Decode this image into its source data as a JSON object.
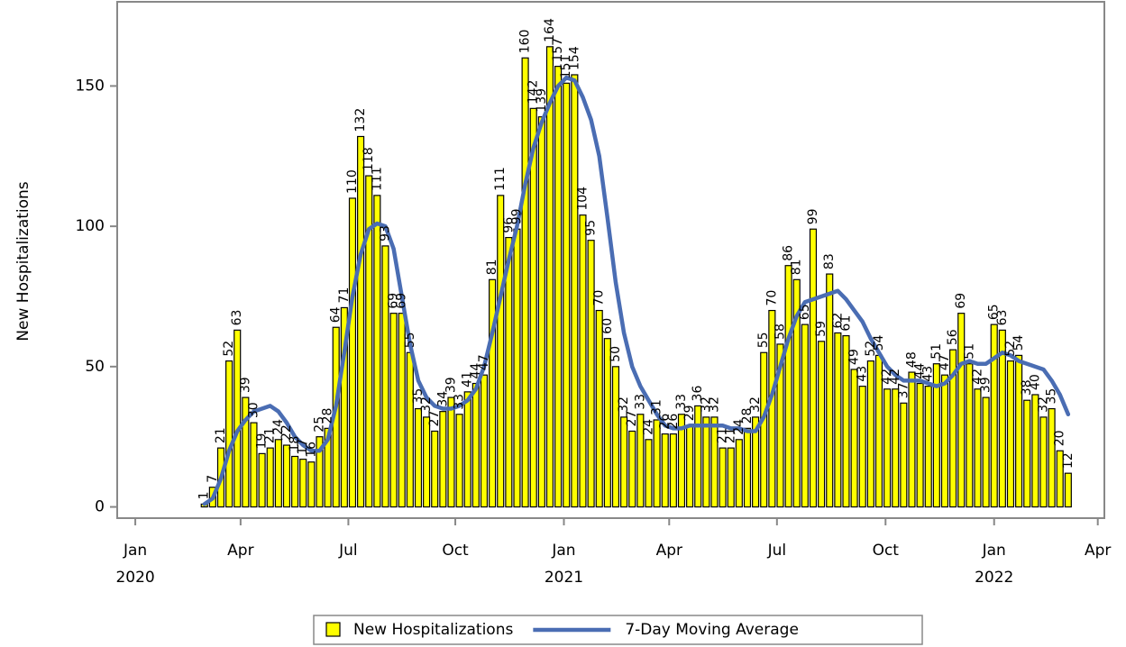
{
  "chart_data": {
    "type": "bar",
    "y_label": "New Hospitalizations",
    "categories": [
      null,
      null,
      null,
      null,
      null,
      null,
      null,
      null,
      null,
      null,
      null,
      null,
      null,
      null,
      null,
      null,
      null,
      null,
      null,
      null,
      null,
      null,
      null,
      null,
      null,
      null,
      null,
      null,
      null,
      null,
      null,
      null,
      null,
      null,
      null,
      null,
      null,
      null,
      null,
      null,
      null,
      null,
      null,
      null,
      null,
      null,
      null,
      null,
      null,
      null,
      null,
      null,
      null,
      null,
      null,
      null,
      null,
      null,
      null,
      null,
      null,
      null,
      null,
      null,
      null,
      null,
      null,
      null,
      null,
      null,
      null,
      null,
      null,
      null,
      null,
      null,
      null,
      null,
      null,
      null,
      null,
      null,
      null,
      null,
      null,
      null,
      null,
      null,
      null,
      null,
      null,
      null,
      null,
      null,
      null,
      null,
      null,
      null,
      null,
      null,
      null,
      null,
      null,
      null,
      null,
      null
    ],
    "series": [
      {
        "name": "New Hospitalizations",
        "type": "bar",
        "color": "#ffff00",
        "values": [
          1,
          7,
          21,
          52,
          63,
          39,
          30,
          19,
          21,
          24,
          22,
          18,
          17,
          16,
          25,
          28,
          64,
          71,
          110,
          132,
          118,
          111,
          93,
          69,
          69,
          55,
          35,
          32,
          27,
          34,
          39,
          33,
          41,
          44,
          47,
          81,
          111,
          96,
          99,
          160,
          142,
          139,
          164,
          157,
          151,
          154,
          104,
          95,
          70,
          60,
          50,
          32,
          27,
          33,
          24,
          31,
          26,
          26,
          33,
          29,
          36,
          32,
          32,
          21,
          21,
          24,
          28,
          32,
          55,
          70,
          58,
          86,
          81,
          65,
          99,
          59,
          83,
          62,
          61,
          49,
          43,
          52,
          54,
          42,
          42,
          37,
          48,
          44,
          43,
          51,
          47,
          56,
          69,
          51,
          42,
          39,
          65,
          63,
          52,
          54,
          38,
          40,
          32,
          35,
          20,
          12
        ]
      },
      {
        "name": "7-Day Moving Average",
        "type": "line",
        "color": "#4a6db3",
        "values": [
          1,
          3,
          10,
          20,
          27,
          31,
          34,
          35,
          36,
          34,
          30,
          25,
          22,
          20,
          20,
          24,
          36,
          55,
          75,
          90,
          99,
          101,
          100,
          92,
          75,
          58,
          45,
          39,
          36,
          35,
          35,
          36,
          38,
          42,
          50,
          62,
          75,
          88,
          100,
          115,
          128,
          137,
          144,
          150,
          153,
          152,
          146,
          138,
          125,
          103,
          80,
          62,
          50,
          43,
          38,
          33,
          29,
          28,
          28,
          29,
          29,
          29,
          29,
          29,
          28,
          28,
          27,
          27,
          32,
          40,
          50,
          60,
          68,
          73,
          74,
          75,
          76,
          77,
          74,
          70,
          66,
          60,
          55,
          50,
          47,
          45,
          45,
          45,
          44,
          43,
          44,
          47,
          51,
          52,
          51,
          51,
          53,
          55,
          54,
          52,
          51,
          50,
          49,
          45,
          40,
          33
        ]
      }
    ],
    "xlim": [
      -10.6,
      109.4
    ],
    "xticks": [
      {
        "value": -8.4,
        "label": "Jan 2020"
      },
      {
        "value": 4.4,
        "label": "Apr"
      },
      {
        "value": 17.5,
        "label": "Jul"
      },
      {
        "value": 30.5,
        "label": "Oct"
      },
      {
        "value": 43.7,
        "label": "Jan 2021"
      },
      {
        "value": 56.5,
        "label": "Apr"
      },
      {
        "value": 69.6,
        "label": "Jul"
      },
      {
        "value": 82.8,
        "label": "Oct"
      },
      {
        "value": 96.0,
        "label": "Jan 2022"
      },
      {
        "value": 108.6,
        "label": "Apr"
      }
    ],
    "ylim": [
      -4,
      180
    ],
    "yticks": [
      0,
      50,
      100,
      150
    ],
    "grid": false,
    "legend": "bottom"
  }
}
